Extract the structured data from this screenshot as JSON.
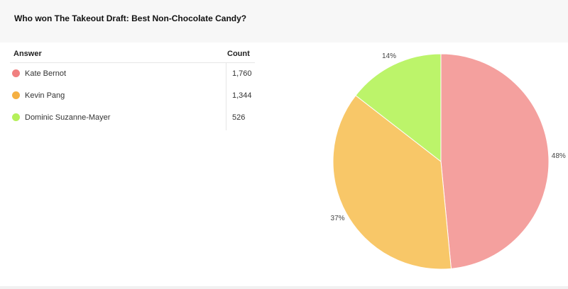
{
  "poll": {
    "title": "Who won The Takeout Draft: Best Non-Chocolate Candy?"
  },
  "table": {
    "answer_header": "Answer",
    "count_header": "Count",
    "rows": [
      {
        "answer": "Kate Bernot",
        "count": "1,760",
        "color": "#f08080"
      },
      {
        "answer": "Kevin Pang",
        "count": "1,344",
        "color": "#f5b042"
      },
      {
        "answer": "Dominic Suzanne-Mayer",
        "count": "526",
        "color": "#b5f05a"
      }
    ]
  },
  "chart_data": {
    "type": "pie",
    "categories": [
      "Kate Bernot",
      "Kevin Pang",
      "Dominic Suzanne-Mayer"
    ],
    "values": [
      1760,
      1344,
      526
    ],
    "labels": [
      "48%",
      "37%",
      "14%"
    ],
    "colors": [
      "#f4a09e",
      "#f8c768",
      "#bcf46a"
    ]
  }
}
